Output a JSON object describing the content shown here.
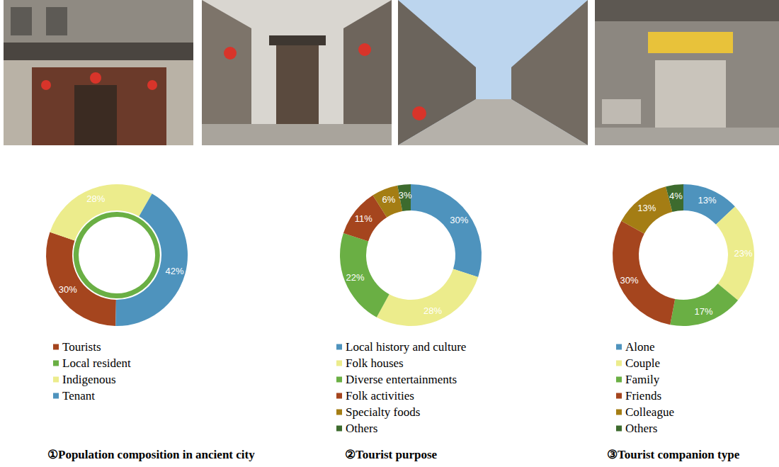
{
  "chart_data": [
    {
      "type": "pie",
      "title": "①Population composition in ancient city",
      "categories": [
        "Tourists",
        "Local resident",
        "Indigenous",
        "Tenant"
      ],
      "colors": [
        "#a5451e",
        "#6aaf44",
        "#ecec8c",
        "#4e93bd"
      ],
      "series": [
        {
          "values": [
            30,
            null,
            28,
            42
          ],
          "value_labels": [
            "30%",
            null,
            "28%",
            "42%"
          ]
        },
        {
          "values": [
            null,
            100,
            null,
            null
          ]
        }
      ],
      "data_labels": true,
      "legend": "bottom"
    },
    {
      "type": "pie",
      "title": "②Tourist purpose",
      "categories": [
        "Local history and culture",
        "Folk houses",
        "Diverse entertainments",
        "Folk activities",
        "Specialty foods",
        "Others"
      ],
      "colors": [
        "#4e93bd",
        "#ecec8c",
        "#6aaf44",
        "#a5451e",
        "#a47d14",
        "#3d6b2e"
      ],
      "values": [
        30,
        28,
        22,
        11,
        6,
        3
      ],
      "value_labels": [
        "30%",
        "28%",
        "22%",
        "11%",
        "6%",
        "3%"
      ],
      "data_labels": true,
      "legend": "bottom"
    },
    {
      "type": "pie",
      "title": "③Tourist companion type",
      "categories": [
        "Alone",
        "Couple",
        "Family",
        "Friends",
        "Colleague",
        "Others"
      ],
      "colors": [
        "#4e93bd",
        "#ecec8c",
        "#6aaf44",
        "#a5451e",
        "#a47d14",
        "#3d6b2e"
      ],
      "values": [
        13,
        23,
        17,
        30,
        13,
        4
      ],
      "value_labels": [
        "13%",
        "23%",
        "17%",
        "30%",
        "13%",
        "4%"
      ],
      "data_labels": true,
      "legend": "bottom"
    }
  ]
}
